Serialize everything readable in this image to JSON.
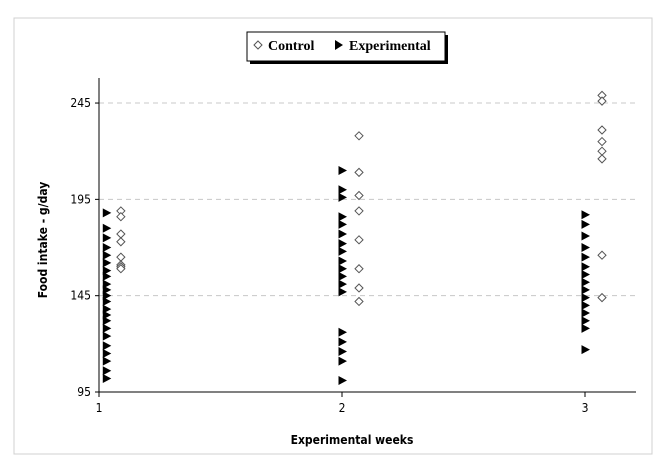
{
  "chart_data": {
    "type": "scatter",
    "title": "",
    "xlabel": "Experimental weeks",
    "ylabel": "Food intake - g/day",
    "xlim": [
      1,
      3.2
    ],
    "ylim": [
      95,
      258
    ],
    "x_ticks": [
      1,
      2,
      3
    ],
    "y_ticks": [
      95,
      145,
      195,
      245
    ],
    "grid": "horizontal dashed",
    "legend_position": "top-center",
    "series": [
      {
        "name": "Control",
        "marker": "open-diamond",
        "color": "#555555",
        "points": [
          [
            1.09,
            189
          ],
          [
            1.09,
            186
          ],
          [
            1.09,
            177
          ],
          [
            1.09,
            173
          ],
          [
            1.09,
            165
          ],
          [
            1.09,
            161
          ],
          [
            1.09,
            160
          ],
          [
            1.09,
            159
          ],
          [
            2.07,
            228
          ],
          [
            2.07,
            209
          ],
          [
            2.07,
            197
          ],
          [
            2.07,
            189
          ],
          [
            2.07,
            174
          ],
          [
            2.07,
            159
          ],
          [
            2.07,
            149
          ],
          [
            2.07,
            142
          ],
          [
            3.07,
            249
          ],
          [
            3.07,
            246
          ],
          [
            3.07,
            231
          ],
          [
            3.07,
            225
          ],
          [
            3.07,
            220
          ],
          [
            3.07,
            216
          ],
          [
            3.07,
            166
          ],
          [
            3.07,
            144
          ]
        ]
      },
      {
        "name": "Experimental",
        "marker": "filled-triangle-right",
        "color": "#000000",
        "points": [
          [
            1.03,
            188
          ],
          [
            1.03,
            180
          ],
          [
            1.03,
            175
          ],
          [
            1.03,
            170
          ],
          [
            1.03,
            166
          ],
          [
            1.03,
            162
          ],
          [
            1.03,
            158
          ],
          [
            1.03,
            155
          ],
          [
            1.03,
            151
          ],
          [
            1.03,
            148
          ],
          [
            1.03,
            145
          ],
          [
            1.03,
            142
          ],
          [
            1.03,
            138
          ],
          [
            1.03,
            135
          ],
          [
            1.03,
            132
          ],
          [
            1.03,
            128
          ],
          [
            1.03,
            124
          ],
          [
            1.03,
            119
          ],
          [
            1.03,
            115
          ],
          [
            1.03,
            111
          ],
          [
            1.03,
            106
          ],
          [
            1.03,
            102
          ],
          [
            2.0,
            210
          ],
          [
            2.0,
            200
          ],
          [
            2.0,
            196
          ],
          [
            2.0,
            186
          ],
          [
            2.0,
            182
          ],
          [
            2.0,
            177
          ],
          [
            2.0,
            172
          ],
          [
            2.0,
            168
          ],
          [
            2.0,
            163
          ],
          [
            2.0,
            159
          ],
          [
            2.0,
            155
          ],
          [
            2.0,
            151
          ],
          [
            2.0,
            147
          ],
          [
            2.0,
            126
          ],
          [
            2.0,
            121
          ],
          [
            2.0,
            116
          ],
          [
            2.0,
            111
          ],
          [
            2.0,
            101
          ],
          [
            3.0,
            187
          ],
          [
            3.0,
            182
          ],
          [
            3.0,
            176
          ],
          [
            3.0,
            170
          ],
          [
            3.0,
            165
          ],
          [
            3.0,
            160
          ],
          [
            3.0,
            156
          ],
          [
            3.0,
            152
          ],
          [
            3.0,
            148
          ],
          [
            3.0,
            144
          ],
          [
            3.0,
            140
          ],
          [
            3.0,
            136
          ],
          [
            3.0,
            132
          ],
          [
            3.0,
            128
          ],
          [
            3.0,
            117
          ]
        ]
      }
    ]
  }
}
